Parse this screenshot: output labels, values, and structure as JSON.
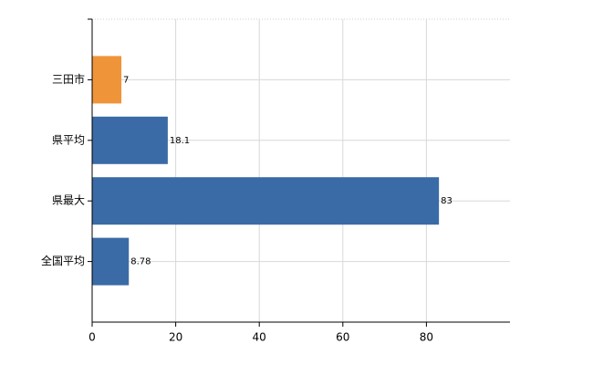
{
  "chart_data": {
    "type": "bar",
    "orientation": "horizontal",
    "categories": [
      "三田市",
      "県平均",
      "県最大",
      "全国平均"
    ],
    "values": [
      7,
      18.1,
      83,
      8.78
    ],
    "colors": [
      "#f0943a",
      "#3a6ba6",
      "#3a6ba6",
      "#3a6ba6"
    ],
    "xlim": [
      0,
      100
    ],
    "xticks": [
      0,
      20,
      40,
      60,
      80
    ],
    "grid": true
  }
}
